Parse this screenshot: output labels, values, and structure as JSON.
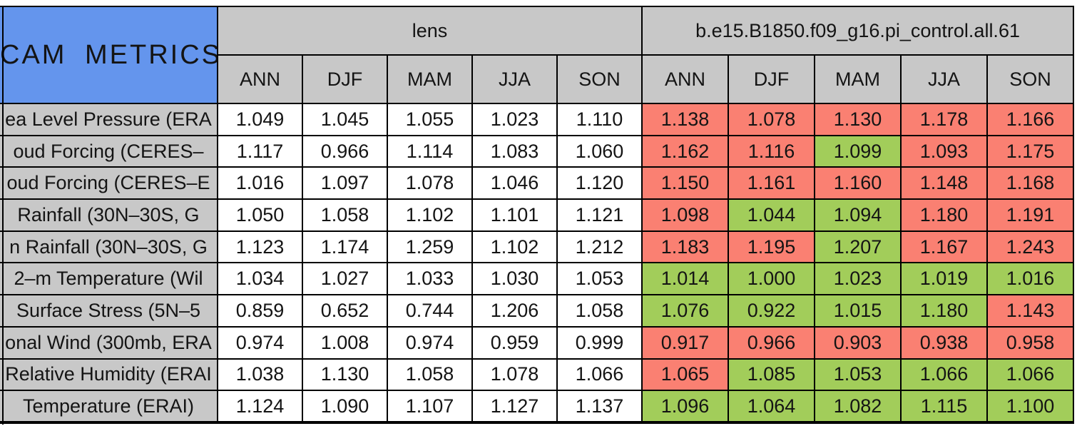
{
  "title": "CAM METRICS",
  "groups": [
    {
      "label": "lens"
    },
    {
      "label": "b.e15.B1850.f09_g16.pi_control.all.61"
    }
  ],
  "seasons": [
    "ANN",
    "DJF",
    "MAM",
    "JJA",
    "SON"
  ],
  "colors": {
    "title_bg": "#6495ED",
    "header_bg": "#C8C8C8",
    "cell_bg": "#FFFFFF",
    "border": "#000000",
    "better": "#A2CD5A",
    "worse": "#FA8072"
  },
  "rows": [
    {
      "label": "ea Level Pressure (ERA",
      "lens": [
        "1.049",
        "1.045",
        "1.055",
        "1.023",
        "1.110"
      ],
      "control": [
        {
          "v": "1.138",
          "state": "worse"
        },
        {
          "v": "1.078",
          "state": "worse"
        },
        {
          "v": "1.130",
          "state": "worse"
        },
        {
          "v": "1.178",
          "state": "worse"
        },
        {
          "v": "1.166",
          "state": "worse"
        }
      ]
    },
    {
      "label": "oud Forcing (CERES–",
      "lens": [
        "1.117",
        "0.966",
        "1.114",
        "1.083",
        "1.060"
      ],
      "control": [
        {
          "v": "1.162",
          "state": "worse"
        },
        {
          "v": "1.116",
          "state": "worse"
        },
        {
          "v": "1.099",
          "state": "better"
        },
        {
          "v": "1.093",
          "state": "worse"
        },
        {
          "v": "1.175",
          "state": "worse"
        }
      ]
    },
    {
      "label": "oud Forcing (CERES–E",
      "lens": [
        "1.016",
        "1.097",
        "1.078",
        "1.046",
        "1.120"
      ],
      "control": [
        {
          "v": "1.150",
          "state": "worse"
        },
        {
          "v": "1.161",
          "state": "worse"
        },
        {
          "v": "1.160",
          "state": "worse"
        },
        {
          "v": "1.148",
          "state": "worse"
        },
        {
          "v": "1.168",
          "state": "worse"
        }
      ]
    },
    {
      "label": "Rainfall (30N–30S, G",
      "lens": [
        "1.050",
        "1.058",
        "1.102",
        "1.101",
        "1.121"
      ],
      "control": [
        {
          "v": "1.098",
          "state": "worse"
        },
        {
          "v": "1.044",
          "state": "better"
        },
        {
          "v": "1.094",
          "state": "better"
        },
        {
          "v": "1.180",
          "state": "worse"
        },
        {
          "v": "1.191",
          "state": "worse"
        }
      ]
    },
    {
      "label": "n Rainfall (30N–30S, G",
      "lens": [
        "1.123",
        "1.174",
        "1.259",
        "1.102",
        "1.212"
      ],
      "control": [
        {
          "v": "1.183",
          "state": "worse"
        },
        {
          "v": "1.195",
          "state": "worse"
        },
        {
          "v": "1.207",
          "state": "better"
        },
        {
          "v": "1.167",
          "state": "worse"
        },
        {
          "v": "1.243",
          "state": "worse"
        }
      ]
    },
    {
      "label": "2–m Temperature (Wil",
      "lens": [
        "1.034",
        "1.027",
        "1.033",
        "1.030",
        "1.053"
      ],
      "control": [
        {
          "v": "1.014",
          "state": "better"
        },
        {
          "v": "1.000",
          "state": "better"
        },
        {
          "v": "1.023",
          "state": "better"
        },
        {
          "v": "1.019",
          "state": "better"
        },
        {
          "v": "1.016",
          "state": "better"
        }
      ]
    },
    {
      "label": "Surface Stress (5N–5",
      "lens": [
        "0.859",
        "0.652",
        "0.744",
        "1.206",
        "1.058"
      ],
      "control": [
        {
          "v": "1.076",
          "state": "better"
        },
        {
          "v": "0.922",
          "state": "better"
        },
        {
          "v": "1.015",
          "state": "better"
        },
        {
          "v": "1.180",
          "state": "better"
        },
        {
          "v": "1.143",
          "state": "worse"
        }
      ]
    },
    {
      "label": "onal Wind (300mb, ERA",
      "lens": [
        "0.974",
        "1.008",
        "0.974",
        "0.959",
        "0.999"
      ],
      "control": [
        {
          "v": "0.917",
          "state": "worse"
        },
        {
          "v": "0.966",
          "state": "worse"
        },
        {
          "v": "0.903",
          "state": "worse"
        },
        {
          "v": "0.938",
          "state": "worse"
        },
        {
          "v": "0.958",
          "state": "worse"
        }
      ]
    },
    {
      "label": "Relative Humidity (ERAI",
      "lens": [
        "1.038",
        "1.130",
        "1.058",
        "1.078",
        "1.066"
      ],
      "control": [
        {
          "v": "1.065",
          "state": "worse"
        },
        {
          "v": "1.085",
          "state": "better"
        },
        {
          "v": "1.053",
          "state": "better"
        },
        {
          "v": "1.066",
          "state": "better"
        },
        {
          "v": "1.066",
          "state": "better"
        }
      ]
    },
    {
      "label": "Temperature (ERAI)",
      "lens": [
        "1.124",
        "1.090",
        "1.107",
        "1.127",
        "1.137"
      ],
      "control": [
        {
          "v": "1.096",
          "state": "better"
        },
        {
          "v": "1.064",
          "state": "better"
        },
        {
          "v": "1.082",
          "state": "better"
        },
        {
          "v": "1.115",
          "state": "better"
        },
        {
          "v": "1.100",
          "state": "better"
        }
      ]
    }
  ],
  "chart_data": {
    "type": "table",
    "title": "CAM METRICS",
    "column_groups": [
      "lens",
      "b.e15.B1850.f09_g16.pi_control.all.61"
    ],
    "columns": [
      "ANN",
      "DJF",
      "MAM",
      "JJA",
      "SON",
      "ANN",
      "DJF",
      "MAM",
      "JJA",
      "SON"
    ],
    "row_labels": [
      "ea Level Pressure (ERA",
      "oud Forcing (CERES–",
      "oud Forcing (CERES–E",
      "Rainfall (30N–30S, G",
      "n Rainfall (30N–30S, G",
      "2–m Temperature (Wil",
      "Surface Stress (5N–5",
      "onal Wind (300mb, ERA",
      "Relative Humidity (ERAI",
      "Temperature (ERAI)"
    ],
    "values": [
      [
        1.049,
        1.045,
        1.055,
        1.023,
        1.11,
        1.138,
        1.078,
        1.13,
        1.178,
        1.166
      ],
      [
        1.117,
        0.966,
        1.114,
        1.083,
        1.06,
        1.162,
        1.116,
        1.099,
        1.093,
        1.175
      ],
      [
        1.016,
        1.097,
        1.078,
        1.046,
        1.12,
        1.15,
        1.161,
        1.16,
        1.148,
        1.168
      ],
      [
        1.05,
        1.058,
        1.102,
        1.101,
        1.121,
        1.098,
        1.044,
        1.094,
        1.18,
        1.191
      ],
      [
        1.123,
        1.174,
        1.259,
        1.102,
        1.212,
        1.183,
        1.195,
        1.207,
        1.167,
        1.243
      ],
      [
        1.034,
        1.027,
        1.033,
        1.03,
        1.053,
        1.014,
        1.0,
        1.023,
        1.019,
        1.016
      ],
      [
        0.859,
        0.652,
        0.744,
        1.206,
        1.058,
        1.076,
        0.922,
        1.015,
        1.18,
        1.143
      ],
      [
        0.974,
        1.008,
        0.974,
        0.959,
        0.999,
        0.917,
        0.966,
        0.903,
        0.938,
        0.958
      ],
      [
        1.038,
        1.13,
        1.058,
        1.078,
        1.066,
        1.065,
        1.085,
        1.053,
        1.066,
        1.066
      ],
      [
        1.124,
        1.09,
        1.107,
        1.127,
        1.137,
        1.096,
        1.064,
        1.082,
        1.115,
        1.1
      ]
    ],
    "control_cell_colors": [
      [
        "red",
        "red",
        "red",
        "red",
        "red"
      ],
      [
        "red",
        "red",
        "green",
        "red",
        "red"
      ],
      [
        "red",
        "red",
        "red",
        "red",
        "red"
      ],
      [
        "red",
        "green",
        "green",
        "red",
        "red"
      ],
      [
        "red",
        "red",
        "green",
        "red",
        "red"
      ],
      [
        "green",
        "green",
        "green",
        "green",
        "green"
      ],
      [
        "green",
        "green",
        "green",
        "green",
        "red"
      ],
      [
        "red",
        "red",
        "red",
        "red",
        "red"
      ],
      [
        "red",
        "green",
        "green",
        "green",
        "green"
      ],
      [
        "green",
        "green",
        "green",
        "green",
        "green"
      ]
    ],
    "layout": {
      "grid": "on",
      "legend": "none"
    }
  }
}
